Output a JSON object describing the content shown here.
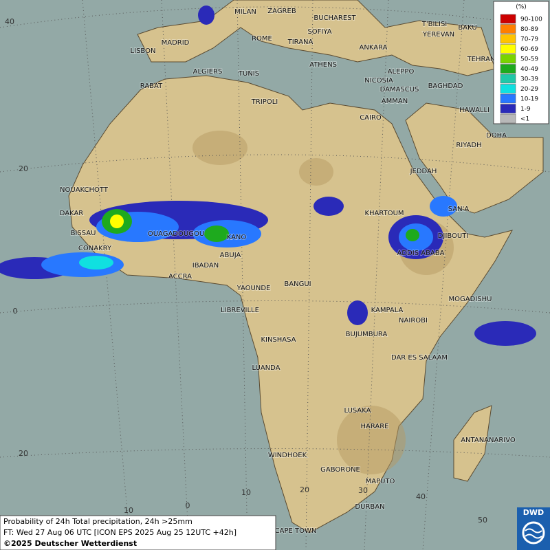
{
  "map": {
    "legend": {
      "unit": "(%)",
      "classes": [
        {
          "label": "90-100",
          "color": "#cc0000"
        },
        {
          "label": "80-89",
          "color": "#ff7f00"
        },
        {
          "label": "70-79",
          "color": "#ffc400"
        },
        {
          "label": "60-69",
          "color": "#ffff00"
        },
        {
          "label": "50-59",
          "color": "#7ad400"
        },
        {
          "label": "40-49",
          "color": "#1eaa1e"
        },
        {
          "label": "30-39",
          "color": "#20c8a8"
        },
        {
          "label": "20-29",
          "color": "#10e0e0"
        },
        {
          "label": "10-19",
          "color": "#2878ff"
        },
        {
          "label": "1-9",
          "color": "#2a2ab8"
        },
        {
          "label": "<1",
          "color": "#b8b8b8"
        }
      ]
    },
    "cities": [
      "MILAN",
      "ZAGREB",
      "BUCHAREST",
      "SOFIYA",
      "ROME",
      "TIRANA",
      "ANKARA",
      "T'BILISI",
      "BAKU",
      "YEREVAN",
      "TEHRAN",
      "MADRID",
      "LISBON",
      "ALGIERS",
      "TUNIS",
      "ATHENS",
      "ALEPPO",
      "NICOSIA",
      "DAMASCUS",
      "BAGHDAD",
      "AMMAN",
      "RABAT",
      "TRIPOLI",
      "HAWALLI",
      "CAIRO",
      "DOHA",
      "RIYADH",
      "JEDDAH",
      "NOUAKCHOTT",
      "DAKAR",
      "SAN'A",
      "KHARTOUM",
      "BISSAU",
      "OUAGADOUGOU",
      "KANO",
      "DJIBOUTI",
      "CONAKRY",
      "ABUJA",
      "ADDIS ABABA",
      "IBADAN",
      "ACCRA",
      "YAOUNDE",
      "BANGUI",
      "MOGADISHU",
      "LIBREVILLE",
      "KAMPALA",
      "NAIROBI",
      "BUJUMBURA",
      "KINSHASA",
      "DAR ES SALAAM",
      "LUANDA",
      "LUSAKA",
      "HARARE",
      "ANTANANARIVO",
      "WINDHOEK",
      "GABORONE",
      "MAPUTO",
      "DURBAN",
      "CAPE TOWN"
    ],
    "lat_labels": [
      "40",
      "20",
      "0",
      "20"
    ],
    "lon_labels": [
      "10",
      "0",
      "10",
      "20",
      "30",
      "40",
      "50"
    ],
    "footer": {
      "title": "Probability of 24h Total precipitation, 24h >25mm",
      "forecast": "FT: Wed 27 Aug 06 UTC [ICON EPS 2025 Aug 25 12UTC +42h]",
      "copyright": "©2025 Deutscher Wetterdienst"
    },
    "logo": "DWD"
  }
}
